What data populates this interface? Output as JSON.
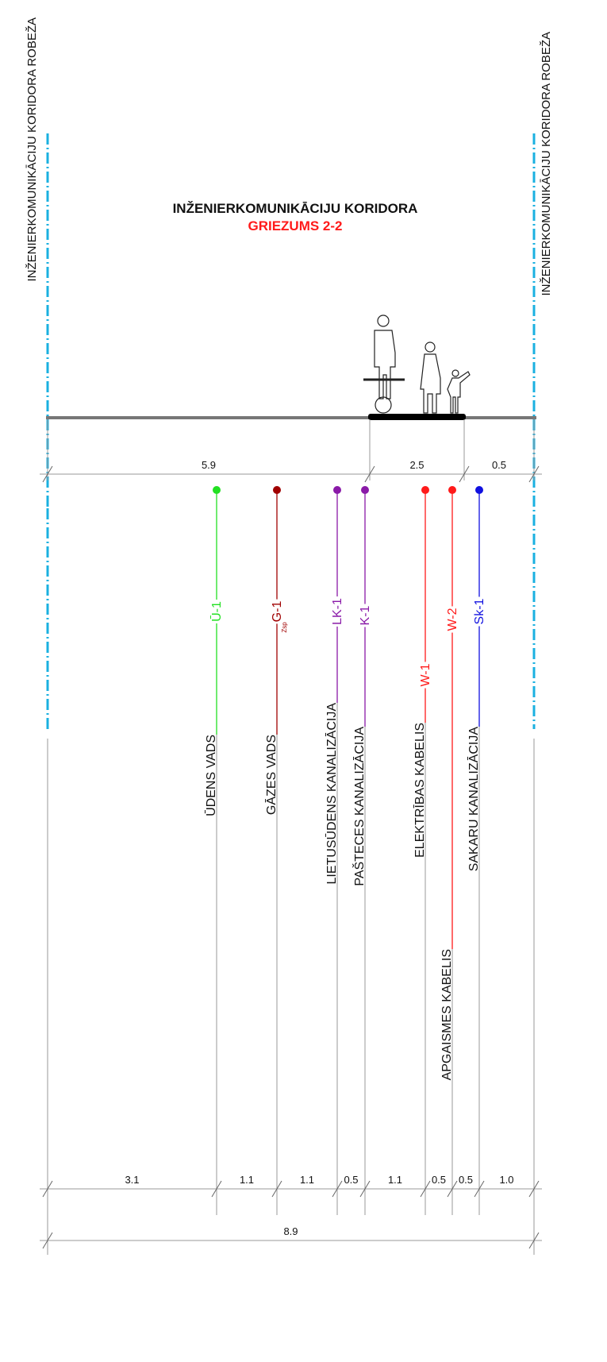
{
  "boundary_label": "INŽENIERKOMUNIKĀCIJU KORIDORA ROBEŽA",
  "title": "INŽENIERKOMUNIKĀCIJU KORIDORA",
  "subtitle": "GRIEZUMS 2-2",
  "top_dimensions": [
    "5.9",
    "2.5",
    "0.5"
  ],
  "utilities": [
    {
      "code": "Ū-1",
      "name": "ŪDENS VADS",
      "color": "#22e022"
    },
    {
      "code": "G-1",
      "sub": "Zsp",
      "name": "GĀZES VADS",
      "color": "#a00000"
    },
    {
      "code": "LK-1",
      "name": "LIETUSŪDENS KANALIZĀCIJA",
      "color": "#8a1aa8"
    },
    {
      "code": "K-1",
      "name": "PAŠTECES KANALIZĀCIJA",
      "color": "#8a1aa8"
    },
    {
      "code": "W-1",
      "name": "ELEKTRĪBAS KABELIS",
      "color": "#ff1a1a"
    },
    {
      "code": "W-2",
      "name": "APGAISMES KABELIS",
      "color": "#ff1a1a"
    },
    {
      "code": "Sk-1",
      "name": "SAKARU KANALIZĀCIJA",
      "color": "#1010e0"
    }
  ],
  "bottom_dimensions": [
    "3.1",
    "1.1",
    "1.1",
    "0.5",
    "1.1",
    "0.5",
    "0.5",
    "1.0"
  ],
  "total_dimension": "8.9"
}
